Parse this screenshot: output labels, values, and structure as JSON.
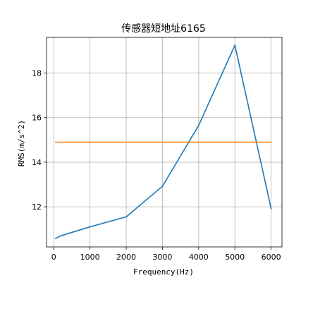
{
  "chart_data": {
    "type": "line",
    "title": "传感器短地址6165",
    "xlabel": "Frequency(Hz)",
    "ylabel": "RMS(m/s^2)",
    "xlim": [
      -200,
      6300
    ],
    "ylim": [
      10.2,
      19.6
    ],
    "xticks": [
      0,
      1000,
      2000,
      3000,
      4000,
      5000,
      6000
    ],
    "yticks": [
      12,
      14,
      16,
      18
    ],
    "grid": true,
    "series": [
      {
        "color": "#1f77b4",
        "x": [
          50,
          200,
          1000,
          2000,
          3000,
          4000,
          5000,
          6000
        ],
        "y": [
          10.58,
          10.7,
          11.1,
          11.55,
          12.92,
          15.65,
          19.25,
          11.92
        ]
      },
      {
        "color": "#ff7f0e",
        "x": [
          50,
          6000
        ],
        "y": [
          14.9,
          14.9
        ]
      }
    ]
  }
}
